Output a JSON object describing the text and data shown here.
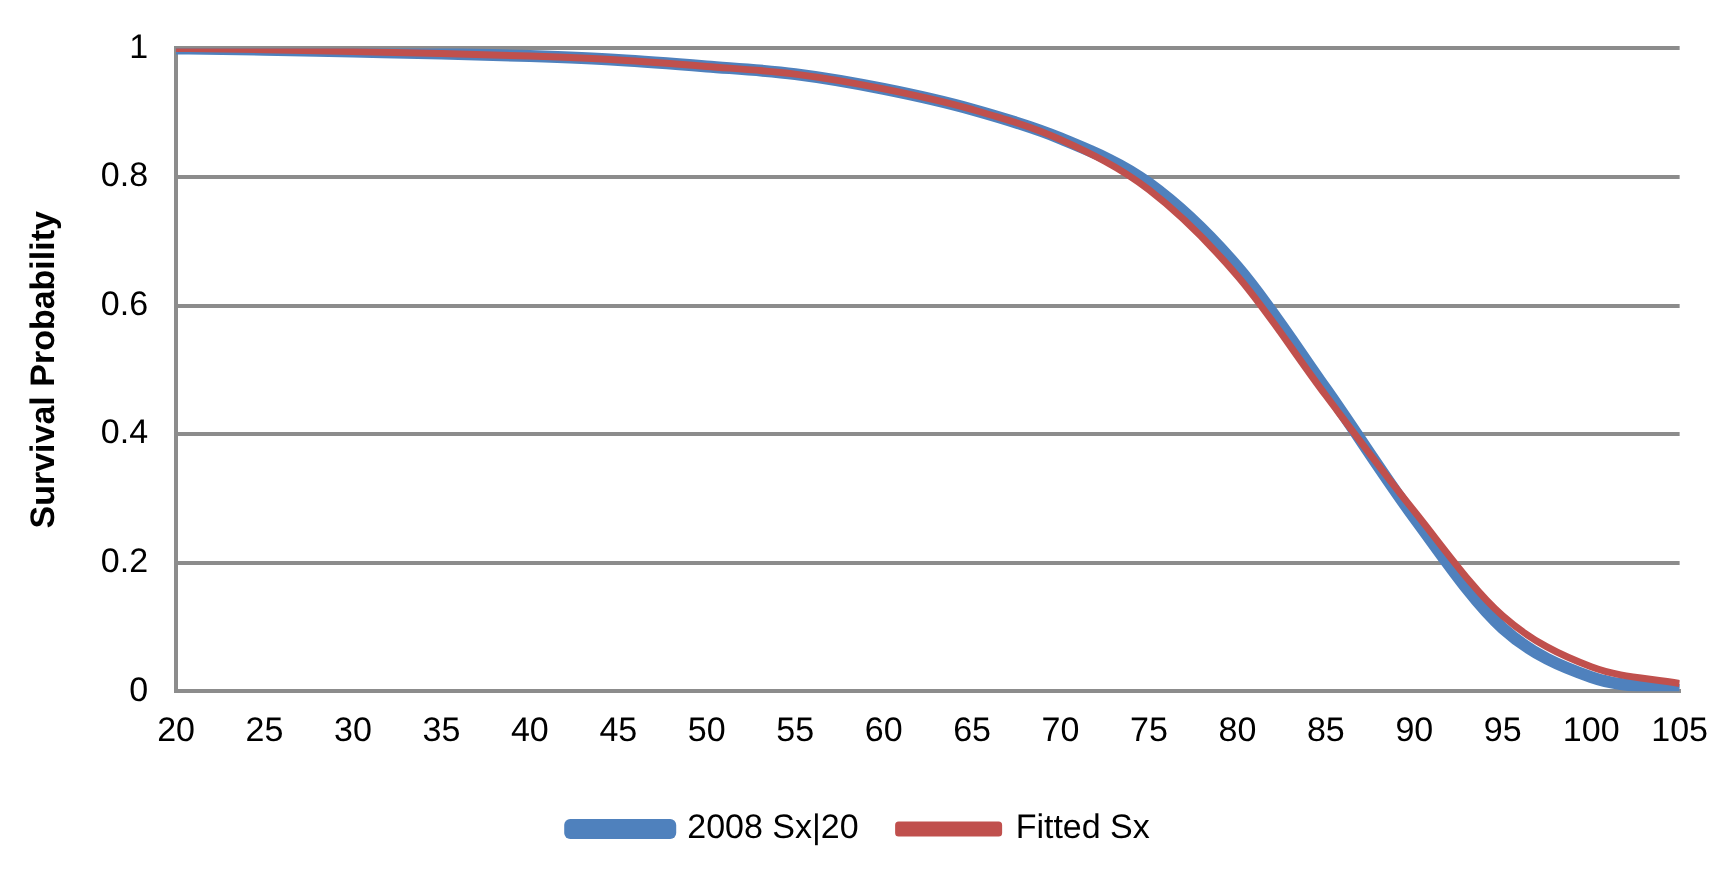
{
  "chart_data": {
    "type": "line",
    "ylabel": "Survival Probability",
    "x": [
      20,
      25,
      30,
      35,
      40,
      45,
      50,
      55,
      60,
      65,
      70,
      75,
      80,
      85,
      90,
      95,
      100,
      105
    ],
    "series": [
      {
        "name": "2008 Sx|20",
        "color": "#4f81bd",
        "values": [
          1.0,
          0.998,
          0.995,
          0.992,
          0.988,
          0.982,
          0.972,
          0.96,
          0.937,
          0.905,
          0.86,
          0.79,
          0.66,
          0.47,
          0.27,
          0.098,
          0.022,
          0.002
        ]
      },
      {
        "name": "Fitted Sx",
        "color": "#c0504d",
        "values": [
          1.0,
          0.998,
          0.995,
          0.992,
          0.988,
          0.982,
          0.972,
          0.96,
          0.937,
          0.905,
          0.858,
          0.78,
          0.646,
          0.46,
          0.28,
          0.117,
          0.038,
          0.012
        ]
      }
    ],
    "xlim": [
      20,
      105
    ],
    "xticks": [
      20,
      25,
      30,
      35,
      40,
      45,
      50,
      55,
      60,
      65,
      70,
      75,
      80,
      85,
      90,
      95,
      100,
      105
    ],
    "ylim": [
      0,
      1
    ],
    "yticks": [
      0,
      0.2,
      0.4,
      0.6,
      0.8,
      1
    ],
    "grid": "y",
    "legend": "bottom",
    "marker": "none",
    "line_style": "solid"
  }
}
